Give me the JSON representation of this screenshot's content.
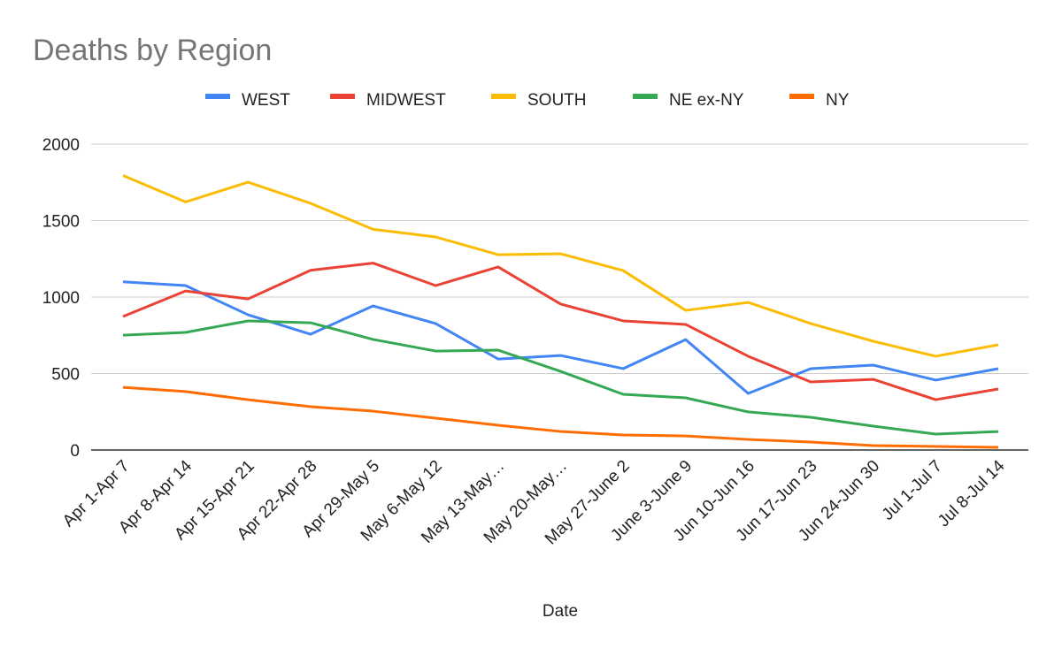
{
  "chart_data": {
    "type": "line",
    "title": "Deaths by Region",
    "xlabel": "Date",
    "ylabel": "",
    "ylim": [
      0,
      2000
    ],
    "yticks": [
      0,
      500,
      1000,
      1500,
      2000
    ],
    "grid": true,
    "legend_position": "top",
    "categories": [
      "Apr 1-Apr 7",
      "Apr 8-Apr 14",
      "Apr 15-Apr 21",
      "Apr 22-Apr 28",
      "Apr 29-May 5",
      "May 6-May 12",
      "May 13-May…",
      "May 20-May…",
      "May 27-June 2",
      "June 3-June 9",
      "Jun 10-Jun 16",
      "Jun 17-Jun 23",
      "Jun 24-Jun 30",
      "Jul 1-Jul 7",
      "Jul 8-Jul 14"
    ],
    "series": [
      {
        "name": "WEST",
        "color": "#4285F4",
        "values": [
          1100,
          1075,
          884,
          757,
          942,
          827,
          595,
          618,
          532,
          722,
          370,
          532,
          555,
          457,
          532
        ]
      },
      {
        "name": "MIDWEST",
        "color": "#EA4335",
        "values": [
          873,
          1040,
          988,
          1175,
          1222,
          1075,
          1197,
          954,
          844,
          821,
          613,
          445,
          462,
          329,
          399
        ]
      },
      {
        "name": "SOUTH",
        "color": "#FBBC04",
        "values": [
          1795,
          1622,
          1751,
          1613,
          1443,
          1393,
          1277,
          1283,
          1173,
          913,
          965,
          827,
          711,
          613,
          688
        ]
      },
      {
        "name": "NE ex-NY",
        "color": "#34A853",
        "values": [
          751,
          769,
          844,
          832,
          723,
          647,
          653,
          514,
          364,
          341,
          249,
          214,
          156,
          104,
          121
        ]
      },
      {
        "name": "NY",
        "color": "#FF6D01",
        "values": [
          410,
          382,
          329,
          283,
          254,
          208,
          162,
          121,
          98,
          92,
          69,
          52,
          29,
          23,
          17
        ]
      }
    ]
  }
}
